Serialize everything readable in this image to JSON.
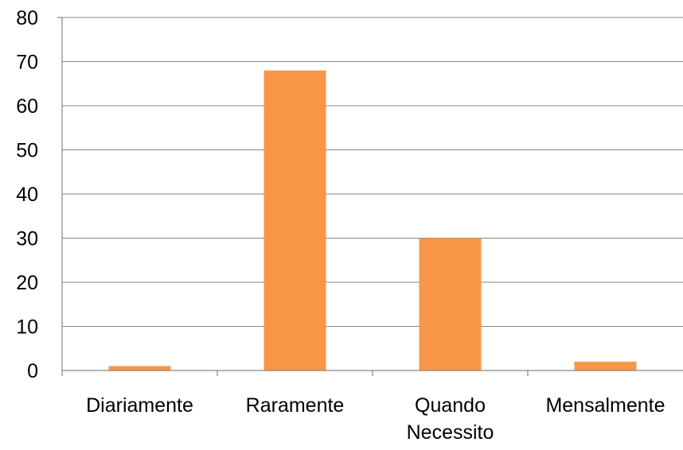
{
  "chart_data": {
    "type": "bar",
    "categories": [
      "Diariamente",
      "Raramente",
      "Quando Necessito",
      "Mensalmente"
    ],
    "category_lines": [
      [
        "Diariamente"
      ],
      [
        "Raramente"
      ],
      [
        "Quando",
        "Necessito"
      ],
      [
        "Mensalmente"
      ]
    ],
    "values": [
      1,
      68,
      30,
      2
    ],
    "ylim": [
      0,
      80
    ],
    "yticks": [
      0,
      10,
      20,
      30,
      40,
      50,
      60,
      70,
      80
    ],
    "grid": true,
    "legend": "none",
    "bar_color": "#F79646"
  }
}
